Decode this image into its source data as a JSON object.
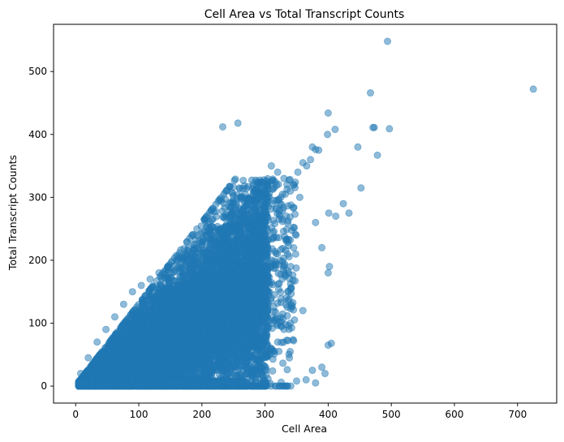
{
  "chart_data": {
    "type": "scatter",
    "title": "Cell Area vs Total Transcript Counts",
    "xlabel": "Cell Area",
    "ylabel": "Total Transcript Counts",
    "xlim": [
      -35,
      762
    ],
    "ylim": [
      -27,
      575
    ],
    "xticks": [
      0,
      100,
      200,
      300,
      400,
      500,
      600,
      700
    ],
    "yticks": [
      0,
      100,
      200,
      300,
      400,
      500
    ],
    "grid": false,
    "legend": "none",
    "point_color": "#1f77b4",
    "point_alpha": 0.5,
    "n_points_approx": 15000,
    "series": [
      {
        "x": [
          494,
          725,
          467,
          473,
          497,
          471,
          478,
          447,
          400,
          411,
          257,
          233,
          399,
          375,
          385,
          452,
          401,
          412,
          424,
          433,
          375,
          390,
          395,
          400,
          405,
          380,
          365,
          350,
          360,
          340,
          330,
          320,
          310,
          300,
          290,
          280,
          270,
          260,
          250,
          240,
          230,
          220,
          210,
          205,
          195,
          185,
          175,
          165,
          155,
          145,
          135,
          125,
          115,
          105,
          95,
          85,
          75,
          65,
          55,
          45,
          35,
          25,
          15,
          10,
          5,
          400,
          402,
          390,
          380,
          355,
          345,
          330,
          320,
          310,
          300,
          290,
          275,
          260,
          245,
          230,
          216,
          202,
          188,
          174,
          160,
          146,
          132,
          118,
          104,
          90,
          76,
          62,
          48,
          34,
          20,
          8,
          380,
          372,
          366,
          360,
          352,
          346,
          340,
          332,
          325,
          318,
          312,
          305,
          298,
          290,
          282,
          275,
          268,
          260,
          252,
          245,
          237,
          230,
          222,
          214
        ],
        "y": [
          548,
          472,
          466,
          411,
          409,
          411,
          367,
          380,
          434,
          408,
          418,
          412,
          400,
          380,
          375,
          315,
          275,
          270,
          290,
          275,
          25,
          30,
          20,
          65,
          68,
          5,
          10,
          8,
          120,
          100,
          90,
          70,
          60,
          5,
          40,
          15,
          80,
          75,
          60,
          50,
          45,
          30,
          35,
          30,
          20,
          15,
          10,
          8,
          6,
          5,
          4,
          3,
          3,
          2,
          2,
          2,
          1,
          1,
          1,
          1,
          1,
          1,
          1,
          1,
          1,
          180,
          190,
          220,
          260,
          300,
          320,
          330,
          340,
          350,
          320,
          300,
          280,
          270,
          260,
          250,
          240,
          230,
          220,
          210,
          200,
          190,
          180,
          170,
          160,
          150,
          130,
          110,
          90,
          70,
          45,
          20,
          376,
          360,
          350,
          355,
          340,
          320,
          310,
          305,
          300,
          295,
          290,
          285,
          280,
          275,
          270,
          265,
          260,
          255,
          250,
          245,
          240,
          235,
          230,
          225
        ]
      }
    ]
  }
}
